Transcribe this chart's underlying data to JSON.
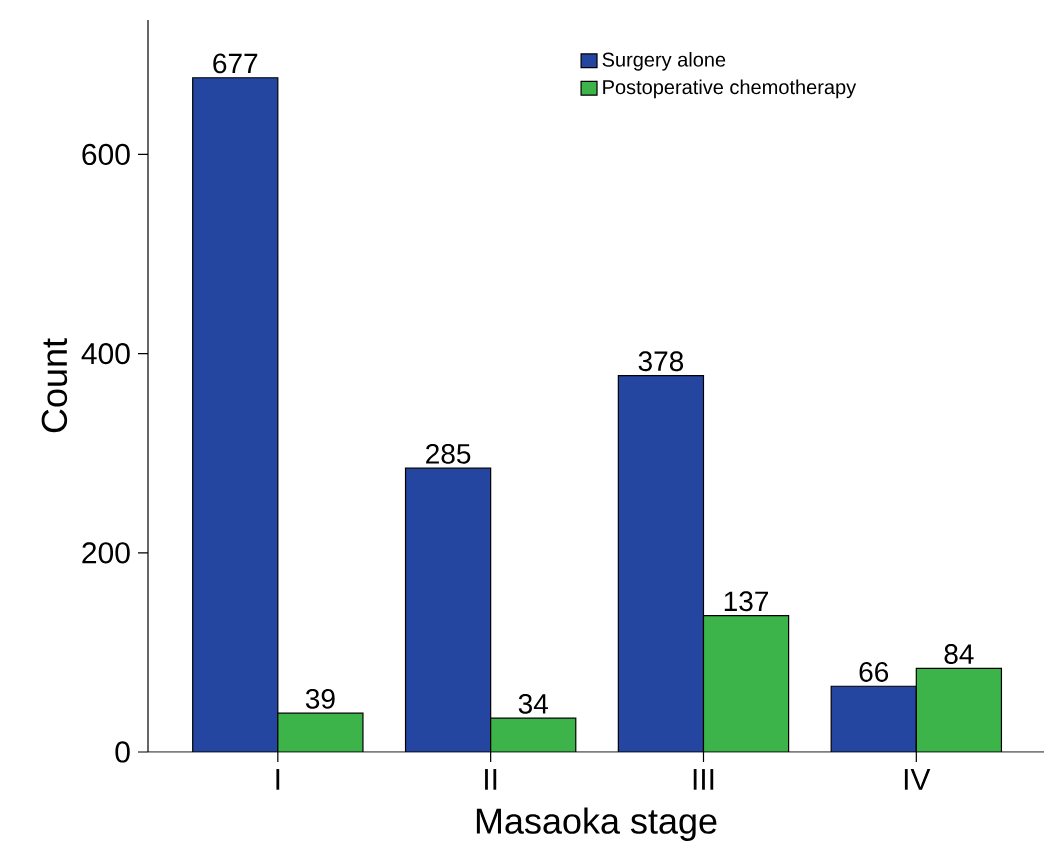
{
  "chart_data": {
    "type": "bar",
    "xlabel": "Masaoka stage",
    "ylabel": "Count",
    "categories": [
      "I",
      "II",
      "III",
      "IV"
    ],
    "series": [
      {
        "name": "Surgery alone",
        "color": "#2446a0",
        "values": [
          677,
          285,
          378,
          66
        ]
      },
      {
        "name": "Postoperative chemotherapy",
        "color": "#3cb44a",
        "values": [
          39,
          34,
          137,
          84
        ]
      }
    ],
    "ylim": [
      0,
      735
    ],
    "yticks": [
      0,
      200,
      400,
      600
    ],
    "data_labels": true,
    "legend": "top right",
    "grid": false
  }
}
